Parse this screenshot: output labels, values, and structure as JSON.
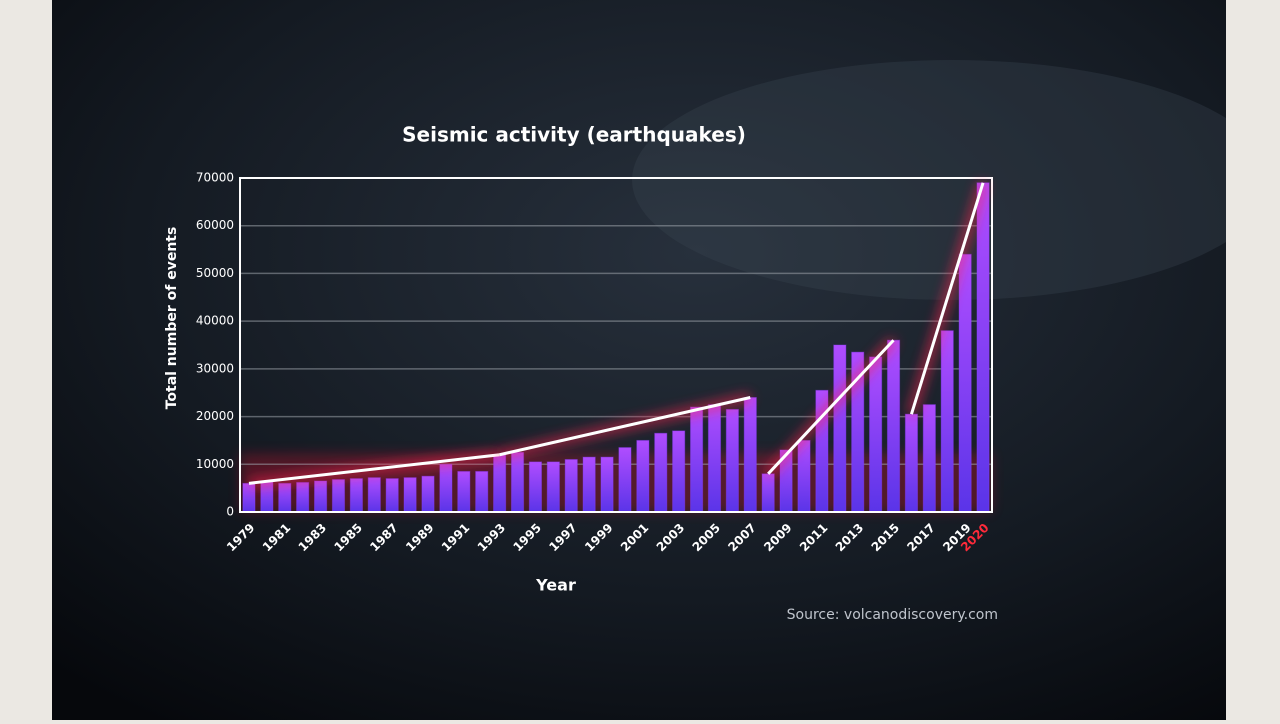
{
  "chart_data": {
    "type": "bar",
    "title": "Seismic activity (earthquakes)",
    "y_label": "Total number of events",
    "x_label": "Year",
    "source": "Source: volcanodiscovery.com",
    "categories": [
      "1979",
      null,
      "1981",
      null,
      "1983",
      null,
      "1985",
      null,
      "1987",
      null,
      "1989",
      null,
      "1991",
      null,
      "1993",
      null,
      "1995",
      null,
      "1997",
      null,
      "1999",
      null,
      "2001",
      null,
      "2003",
      null,
      "2005",
      null,
      "2007",
      null,
      "2009",
      null,
      "2011",
      null,
      "2013",
      null,
      "2015",
      null,
      "2017",
      null,
      "2019",
      "2020"
    ],
    "values": [
      6000,
      6500,
      6000,
      6200,
      6500,
      6800,
      7000,
      7200,
      7000,
      7200,
      7500,
      10000,
      8500,
      8500,
      12000,
      12500,
      10500,
      10500,
      11000,
      11500,
      11500,
      13500,
      15000,
      16500,
      17000,
      22000,
      22500,
      21500,
      24000,
      8000,
      13000,
      15000,
      25500,
      35000,
      33500,
      32500,
      36000,
      20500,
      22500,
      38000,
      54000,
      69000
    ],
    "color": "#8a3dff",
    "ylim": [
      0,
      70000
    ],
    "yticks": [
      0,
      10000,
      20000,
      30000,
      40000,
      50000,
      60000,
      70000
    ],
    "grid": true
  }
}
